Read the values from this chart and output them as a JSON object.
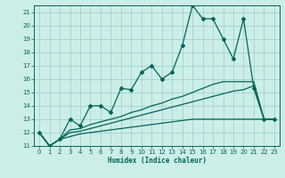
{
  "xlabel": "Humidex (Indice chaleur)",
  "bg_color": "#cceee8",
  "grid_color": "#99cccc",
  "line_color": "#006655",
  "xlim": [
    -0.5,
    23.5
  ],
  "ylim": [
    11,
    21.5
  ],
  "xticks": [
    0,
    1,
    2,
    3,
    4,
    5,
    6,
    7,
    8,
    9,
    10,
    11,
    12,
    13,
    14,
    15,
    16,
    17,
    18,
    19,
    20,
    21,
    22,
    23
  ],
  "yticks": [
    11,
    12,
    13,
    14,
    15,
    16,
    17,
    18,
    19,
    20,
    21
  ],
  "main_x": [
    0,
    1,
    2,
    3,
    4,
    5,
    6,
    7,
    8,
    9,
    10,
    11,
    12,
    13,
    14,
    15,
    16,
    17,
    18,
    19,
    20,
    21,
    22,
    23
  ],
  "main_y": [
    12,
    11,
    11.5,
    13,
    12.5,
    14,
    14,
    13.5,
    15.3,
    15.2,
    16.5,
    17,
    16,
    16.5,
    18.5,
    21.5,
    20.5,
    20.5,
    19,
    17.5,
    20.5,
    15.3,
    13,
    13
  ],
  "line2_x": [
    0,
    1,
    2,
    3,
    4,
    5,
    6,
    7,
    8,
    9,
    10,
    11,
    12,
    13,
    14,
    15,
    16,
    17,
    18,
    19,
    20,
    21,
    22,
    23
  ],
  "line2_y": [
    12,
    11,
    11.5,
    12.2,
    12.3,
    12.6,
    12.8,
    13.0,
    13.2,
    13.5,
    13.7,
    14.0,
    14.2,
    14.5,
    14.7,
    15.0,
    15.3,
    15.6,
    15.8,
    15.8,
    15.8,
    15.8,
    13,
    13
  ],
  "line3_x": [
    0,
    1,
    2,
    3,
    4,
    5,
    6,
    7,
    8,
    9,
    10,
    11,
    12,
    13,
    14,
    15,
    16,
    17,
    18,
    19,
    20,
    21,
    22,
    23
  ],
  "line3_y": [
    12,
    11,
    11.5,
    12.0,
    12.1,
    12.3,
    12.5,
    12.7,
    12.9,
    13.1,
    13.3,
    13.5,
    13.7,
    13.9,
    14.1,
    14.3,
    14.5,
    14.7,
    14.9,
    15.1,
    15.2,
    15.5,
    13,
    13
  ],
  "line4_x": [
    0,
    1,
    2,
    3,
    4,
    5,
    6,
    7,
    8,
    9,
    10,
    11,
    12,
    13,
    14,
    15,
    16,
    17,
    18,
    19,
    20,
    21,
    22,
    23
  ],
  "line4_y": [
    12,
    11,
    11.5,
    11.7,
    11.9,
    12.0,
    12.1,
    12.2,
    12.3,
    12.4,
    12.5,
    12.6,
    12.7,
    12.8,
    12.9,
    13.0,
    13.0,
    13.0,
    13.0,
    13.0,
    13.0,
    13.0,
    13,
    13
  ]
}
